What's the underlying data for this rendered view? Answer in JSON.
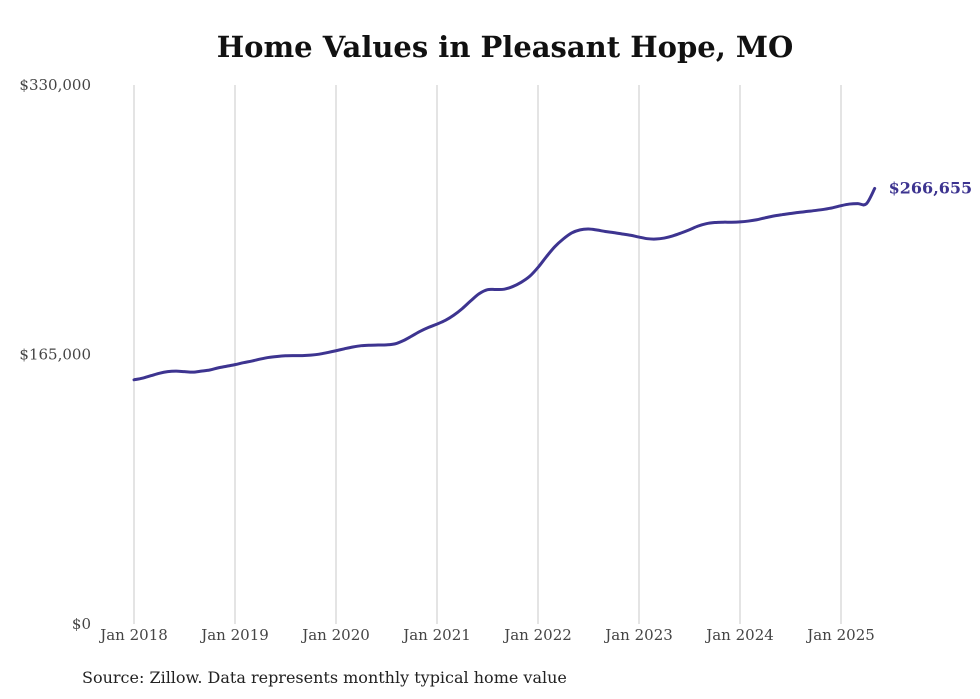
{
  "chart_data": {
    "type": "line",
    "title": "Home Values in Pleasant Hope, MO",
    "xlabel": "",
    "ylabel": "",
    "x_ticks": [
      "Jan 2018",
      "Jan 2019",
      "Jan 2020",
      "Jan 2021",
      "Jan 2022",
      "Jan 2023",
      "Jan 2024",
      "Jan 2025"
    ],
    "y_ticks": [
      "$0",
      "$165,000",
      "$330,000"
    ],
    "ylim": [
      0,
      330000
    ],
    "xlim": [
      "2018-01",
      "2025-05"
    ],
    "grid": "vertical",
    "end_label": "$266,655",
    "color": "#3d3490",
    "series": [
      {
        "x": [
          "2018-01",
          "2018-02",
          "2018-03",
          "2018-04",
          "2018-05",
          "2018-06",
          "2018-07",
          "2018-08",
          "2018-09",
          "2018-10",
          "2018-11",
          "2018-12",
          "2019-01",
          "2019-02",
          "2019-03",
          "2019-04",
          "2019-05",
          "2019-06",
          "2019-07",
          "2019-08",
          "2019-09",
          "2019-10",
          "2019-11",
          "2019-12",
          "2020-01",
          "2020-02",
          "2020-03",
          "2020-04",
          "2020-05",
          "2020-06",
          "2020-07",
          "2020-08",
          "2020-09",
          "2020-10",
          "2020-11",
          "2020-12",
          "2021-01",
          "2021-02",
          "2021-03",
          "2021-04",
          "2021-05",
          "2021-06",
          "2021-07",
          "2021-08",
          "2021-09",
          "2021-10",
          "2021-11",
          "2021-12",
          "2022-01",
          "2022-02",
          "2022-03",
          "2022-04",
          "2022-05",
          "2022-06",
          "2022-07",
          "2022-08",
          "2022-09",
          "2022-10",
          "2022-11",
          "2022-12",
          "2023-01",
          "2023-02",
          "2023-03",
          "2023-04",
          "2023-05",
          "2023-06",
          "2023-07",
          "2023-08",
          "2023-09",
          "2023-10",
          "2023-11",
          "2023-12",
          "2024-01",
          "2024-02",
          "2024-03",
          "2024-04",
          "2024-05",
          "2024-06",
          "2024-07",
          "2024-08",
          "2024-09",
          "2024-10",
          "2024-11",
          "2024-12",
          "2025-01",
          "2025-02",
          "2025-03",
          "2025-04",
          "2025-05"
        ],
        "values": [
          149500,
          150500,
          152000,
          153500,
          154500,
          154800,
          154500,
          154200,
          154800,
          155500,
          156800,
          157800,
          158800,
          160000,
          161000,
          162200,
          163200,
          163800,
          164200,
          164300,
          164300,
          164600,
          165200,
          166200,
          167300,
          168500,
          169600,
          170400,
          170700,
          170800,
          170900,
          171500,
          173500,
          176300,
          179200,
          181600,
          183600,
          185900,
          189100,
          193100,
          197800,
          202200,
          204700,
          204800,
          205000,
          206600,
          209200,
          212800,
          218300,
          224900,
          231000,
          235700,
          239400,
          241300,
          241800,
          241200,
          240300,
          239600,
          238800,
          238000,
          236900,
          235900,
          235700,
          236300,
          237600,
          239400,
          241400,
          243600,
          245100,
          245800,
          246000,
          246000,
          246200,
          246700,
          247500,
          248700,
          249800,
          250600,
          251300,
          252000,
          252600,
          253200,
          253900,
          254800,
          256100,
          257100,
          257400,
          257200,
          266655
        ]
      }
    ]
  },
  "footer": {
    "source": "Source: Zillow. Data represents monthly typical home value"
  }
}
